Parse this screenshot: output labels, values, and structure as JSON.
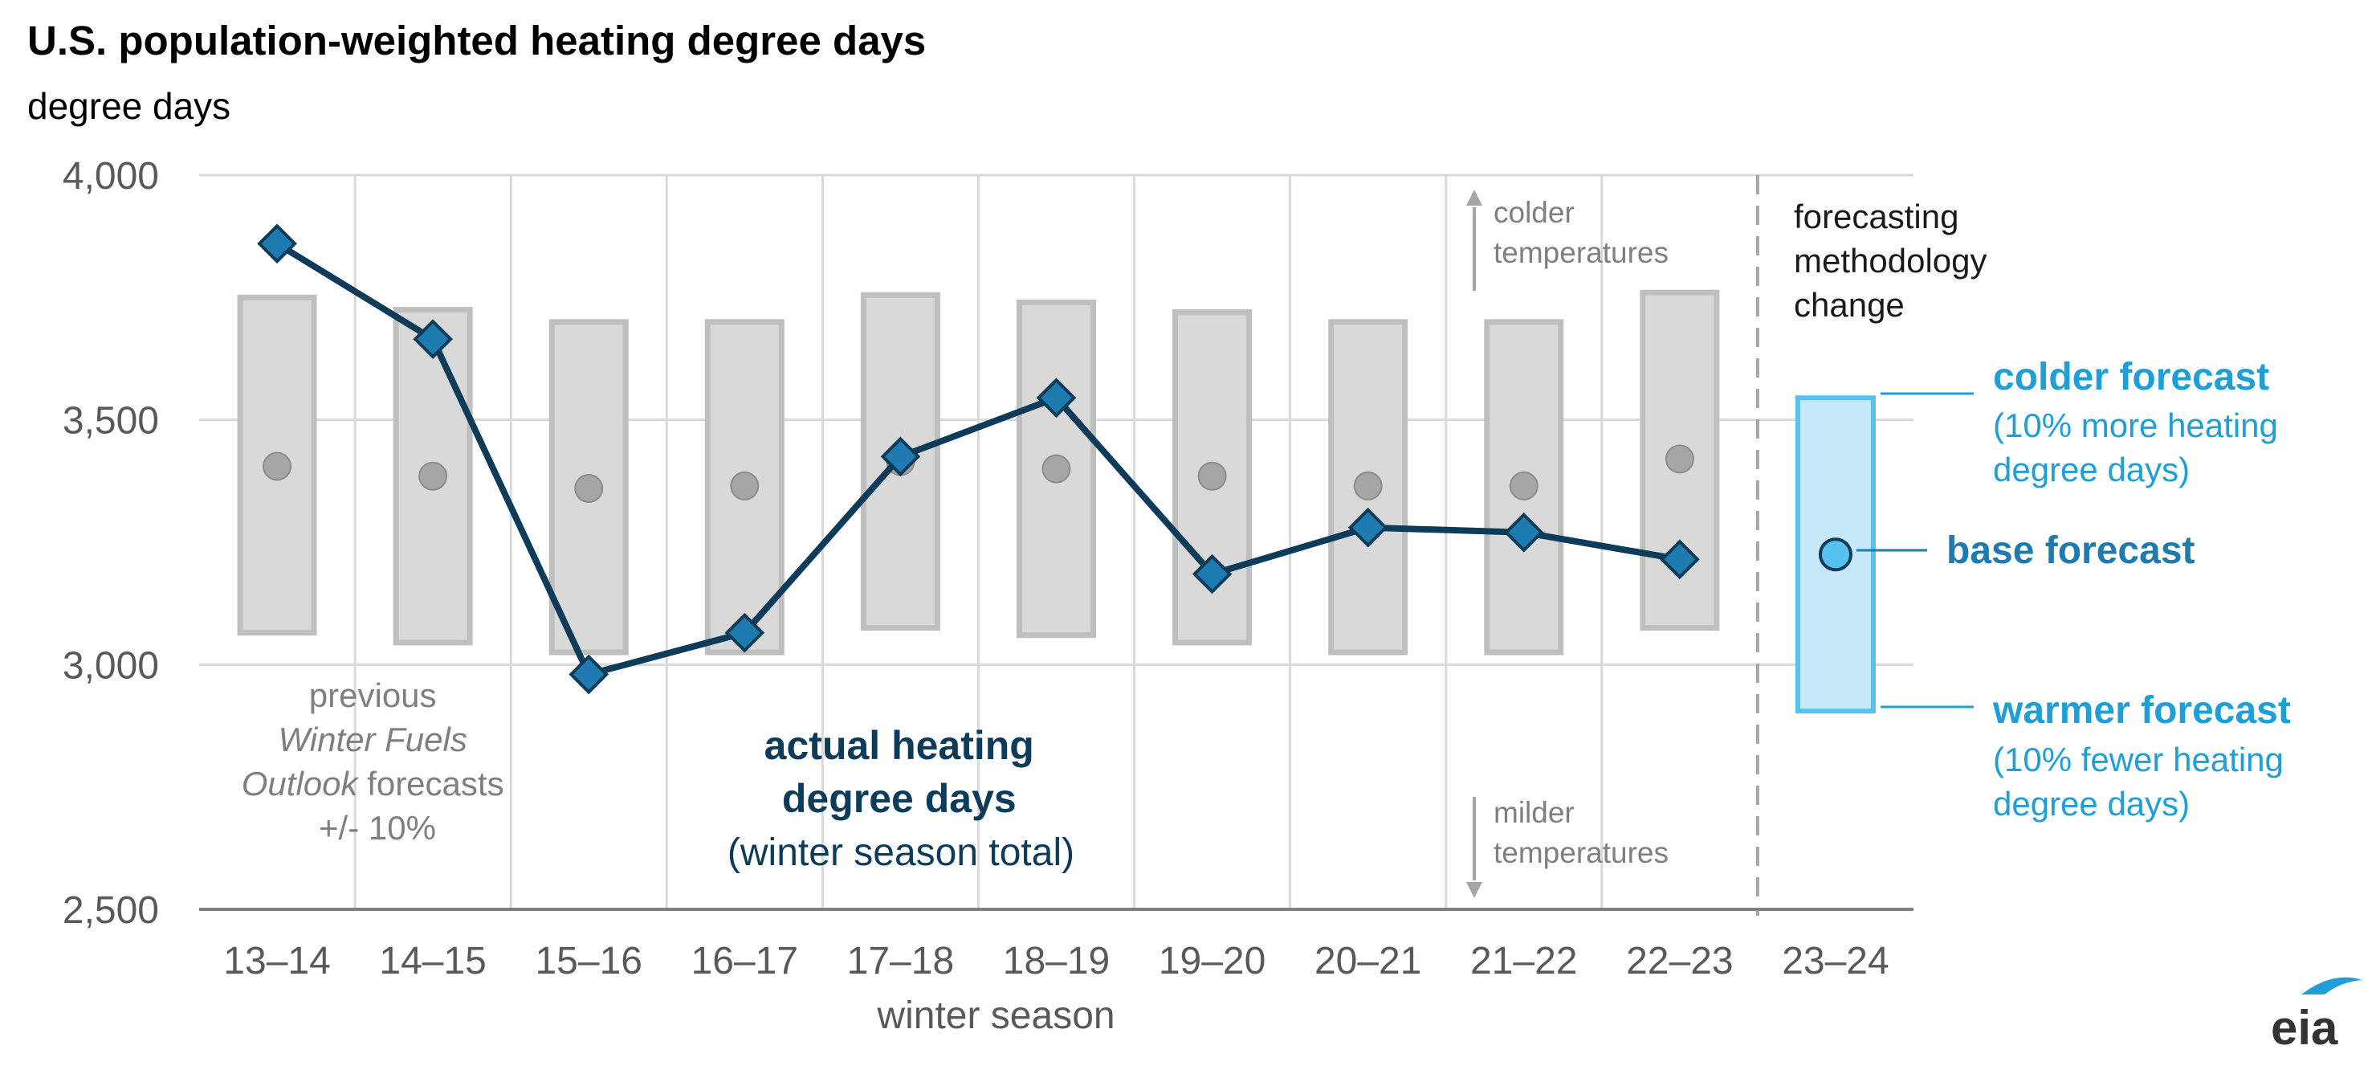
{
  "title": "U.S. population-weighted heating degree days",
  "units": "degree days",
  "colors": {
    "actual_line": "#0d3b5a",
    "actual_marker": "#1e7bb0",
    "range_fill": "#d9d9d9",
    "range_stroke": "#bfbfbf",
    "midpoint": "#a6a6a6",
    "forecast_fill": "#c6e9fa",
    "forecast_stroke": "#56c2ef",
    "forecast_accent": "#1f9fd8",
    "forecast_base_label": "#1e7bb0"
  },
  "chart_data": {
    "type": "line",
    "xlabel": "winter season",
    "ylabel": "",
    "ylim": [
      2500,
      4000
    ],
    "yticks": [
      2500,
      3000,
      3500,
      4000
    ],
    "ytick_labels": [
      "2,500",
      "3,000",
      "3,500",
      "4,000"
    ],
    "grid": true,
    "categories": [
      "13–14",
      "14–15",
      "15–16",
      "16–17",
      "17–18",
      "18–19",
      "19–20",
      "20–21",
      "21–22",
      "22–23",
      "23–24"
    ],
    "series": [
      {
        "name": "actual heating degree days",
        "values": [
          3860,
          3665,
          2980,
          3065,
          3425,
          3545,
          3185,
          3280,
          3270,
          3215,
          null
        ]
      }
    ],
    "previous_forecasts": {
      "midpoint": [
        3405,
        3385,
        3360,
        3365,
        3415,
        3400,
        3385,
        3365,
        3365,
        3420,
        null
      ],
      "low": [
        3065,
        3045,
        3025,
        3025,
        3075,
        3060,
        3045,
        3025,
        3025,
        3075,
        null
      ],
      "high": [
        3750,
        3725,
        3700,
        3700,
        3755,
        3740,
        3720,
        3700,
        3700,
        3760,
        null
      ]
    },
    "current_forecast": {
      "category": "23–24",
      "base": 3225,
      "colder": 3545,
      "warmer": 2905
    },
    "methodology_change_after": "22–23"
  },
  "annotations": {
    "colder_temperatures": [
      "colder",
      "temperatures"
    ],
    "milder_temperatures": [
      "milder",
      "temperatures"
    ],
    "methodology": [
      "forecasting",
      "methodology",
      "change"
    ],
    "previous": {
      "line1": "previous",
      "line2": "Winter Fuels",
      "line3_italic": "Outlook",
      "line3_rest": " forecasts",
      "line4": "+/- 10%"
    },
    "actual": {
      "line1": "actual heating",
      "line2": "degree days",
      "line3": "(winter season total)"
    },
    "colder_forecast": {
      "label": "colder forecast",
      "sub1": "(10% more heating",
      "sub2": "degree days)"
    },
    "base_forecast": "base forecast",
    "warmer_forecast": {
      "label": "warmer forecast",
      "sub1": "(10% fewer heating",
      "sub2": "degree days)"
    }
  },
  "logo": "eia"
}
